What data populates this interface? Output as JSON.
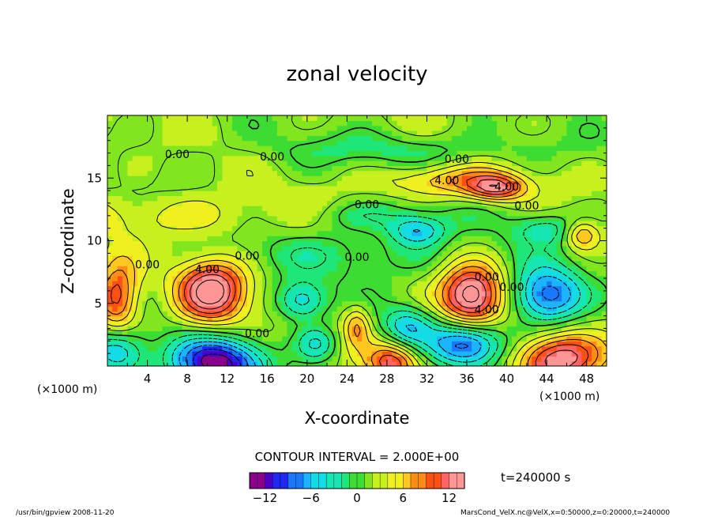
{
  "chart_data": {
    "type": "heatmap",
    "title": "zonal velocity",
    "xlabel": "X-coordinate",
    "ylabel": "Z-coordinate",
    "x_unit_left": "(×1000 m)",
    "x_unit_right": "(×1000 m)",
    "xlim": [
      0,
      50
    ],
    "ylim": [
      0,
      20
    ],
    "x_ticks": [
      "4",
      "8",
      "12",
      "16",
      "20",
      "24",
      "28",
      "32",
      "36",
      "40",
      "44",
      "48"
    ],
    "y_ticks": [
      "5",
      "10",
      "15"
    ],
    "contour_interval_text": "CONTOUR INTERVAL = 2.000E+00",
    "time_text": "t=240000 s",
    "colorbar": {
      "range": [
        -14,
        14
      ],
      "ticks": [
        "−12",
        "−6",
        "0",
        "6",
        "12"
      ],
      "colors": [
        "#8a008a",
        "#4b00c8",
        "#1e28f0",
        "#1a78ff",
        "#1ab4ff",
        "#14dce6",
        "#14e6b4",
        "#1ee678",
        "#3cdc32",
        "#82e61e",
        "#c8f01e",
        "#f0f01e",
        "#ffc81e",
        "#ff8c14",
        "#ff5014",
        "#ff6464",
        "#ff9696"
      ]
    },
    "contour_labels": [
      "0.00",
      "0.00",
      "0.00",
      "0.00",
      "0.00",
      "0.00",
      "0.00",
      "0.00",
      "0.00",
      "0.00",
      "0.00",
      "4.00",
      "4.00",
      "4.00",
      "4.00"
    ],
    "features": [
      {
        "x": 10.5,
        "z": 6.0,
        "value": 13,
        "sx": 2.4,
        "sz": 1.8
      },
      {
        "x": 36.5,
        "z": 5.5,
        "value": 14,
        "sx": 2.2,
        "sz": 1.8
      },
      {
        "x": 1.0,
        "z": 5.5,
        "value": 10,
        "sx": 1.5,
        "sz": 2.0
      },
      {
        "x": 45.0,
        "z": 0.5,
        "value": 12,
        "sx": 3.0,
        "sz": 1.4
      },
      {
        "x": 28.5,
        "z": 0.3,
        "value": 9,
        "sx": 1.8,
        "sz": 1.1
      },
      {
        "x": 39.0,
        "z": 14.2,
        "value": 9,
        "sx": 2.0,
        "sz": 0.7
      },
      {
        "x": 34.0,
        "z": 14.8,
        "value": 6,
        "sx": 4.5,
        "sz": 0.9
      },
      {
        "x": 47.5,
        "z": 10.5,
        "value": 7,
        "sx": 1.2,
        "sz": 0.8
      },
      {
        "x": 25.0,
        "z": 3.2,
        "value": 6,
        "sx": 0.9,
        "sz": 1.1
      },
      {
        "x": 11.0,
        "z": 0.2,
        "value": -15,
        "sx": 3.2,
        "sz": 1.5
      },
      {
        "x": 36.0,
        "z": 1.8,
        "value": -12,
        "sx": 2.6,
        "sz": 1.3
      },
      {
        "x": 44.0,
        "z": 5.6,
        "value": -12,
        "sx": 2.5,
        "sz": 1.6
      },
      {
        "x": 1.0,
        "z": 1.2,
        "value": -9,
        "sx": 2.0,
        "sz": 1.3
      },
      {
        "x": 19.5,
        "z": 5.2,
        "value": -8,
        "sx": 1.8,
        "sz": 1.1
      },
      {
        "x": 30.0,
        "z": 3.2,
        "value": -7,
        "sx": 1.8,
        "sz": 1.1
      },
      {
        "x": 21.0,
        "z": 1.8,
        "value": -6,
        "sx": 1.5,
        "sz": 1.0
      },
      {
        "x": 31.0,
        "z": 10.8,
        "value": -7,
        "sx": 2.0,
        "sz": 0.8
      },
      {
        "x": 44.0,
        "z": 11.0,
        "value": -5,
        "sx": 2.5,
        "sz": 0.9
      },
      {
        "x": 26.0,
        "z": 12.0,
        "value": -4,
        "sx": 6.0,
        "sz": 0.9
      },
      {
        "x": 25.0,
        "z": 9.0,
        "value": -3,
        "sx": 10.0,
        "sz": 1.4
      },
      {
        "x": 8.0,
        "z": 12.0,
        "value": 3,
        "sx": 12.0,
        "sz": 1.2
      },
      {
        "x": 30.0,
        "z": 17.3,
        "value": -3,
        "sx": 10.0,
        "sz": 1.0
      }
    ]
  },
  "footer": {
    "left": "/usr/bin/gpview   2008-11-20",
    "right": "MarsCond_VelX.nc@VelX,x=0:50000,z=0:20000,t=240000"
  }
}
